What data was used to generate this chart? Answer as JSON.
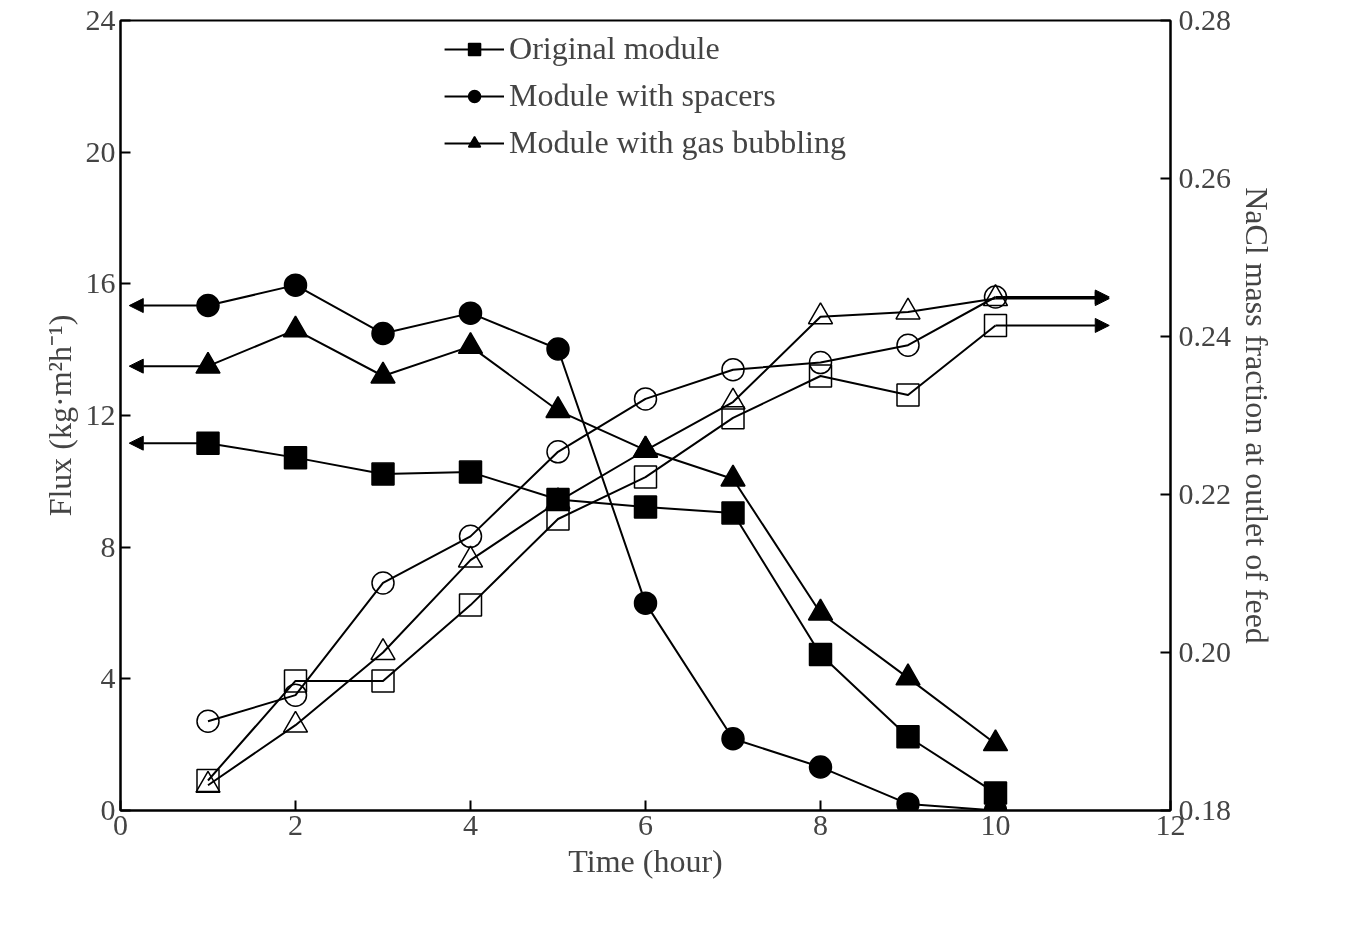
{
  "chart_data": {
    "type": "line",
    "xlabel": "Time (hour)",
    "ylabel": "Flux (kg·m²h⁻¹)",
    "y2label": "NaCl mass fraction at outlet of feed",
    "x": [
      1,
      2,
      3,
      4,
      5,
      6,
      7,
      8,
      9,
      10
    ],
    "xlim": [
      0,
      12
    ],
    "xticks": [
      0,
      2,
      4,
      6,
      8,
      10,
      12
    ],
    "ylim": [
      0,
      24
    ],
    "yticks": [
      0,
      4,
      8,
      12,
      16,
      20,
      24
    ],
    "y2lim": [
      0.18,
      0.28
    ],
    "y2ticks": [
      {
        "value": 0.18,
        "label": "0.18"
      },
      {
        "value": 0.2,
        "label": "0.20"
      },
      {
        "value": 0.22,
        "label": "0.22"
      },
      {
        "value": 0.24,
        "label": "0.24"
      },
      {
        "value": 0.26,
        "label": "0.26"
      },
      {
        "value": 0.28,
        "label": "0.28"
      }
    ],
    "grid": false,
    "legend": "top",
    "line_style": "solid",
    "series": [
      {
        "name": "Original module",
        "color": "#000000",
        "marker": "square",
        "values": [
          11.16,
          10.72,
          10.22,
          10.28,
          9.45,
          9.22,
          9.04,
          4.74,
          2.24,
          0.53
        ]
      },
      {
        "name": "Module with spacers",
        "color": "#000000",
        "marker": "circle",
        "values": [
          15.34,
          15.96,
          14.49,
          15.11,
          14.02,
          6.3,
          2.18,
          1.32,
          0.2,
          0
        ]
      },
      {
        "name": "Module with gas bubbling",
        "color": "#000000",
        "marker": "triangle",
        "values": [
          13.5,
          14.6,
          13.2,
          14.1,
          12.15,
          10.95,
          10.07,
          6.0,
          4.03,
          2.03
        ]
      },
      {
        "color": "#000000",
        "marker": "square",
        "axis": "y2",
        "values": [
          0.1838,
          0.1964,
          0.1964,
          0.206,
          0.2169,
          0.2222,
          0.2297,
          0.235,
          0.2326,
          0.2414
        ]
      },
      {
        "color": "#000000",
        "marker": "circle",
        "axis": "y2",
        "values": [
          0.1913,
          0.1946,
          0.2088,
          0.2147,
          0.2254,
          0.2321,
          0.2358,
          0.2367,
          0.2389,
          0.245
        ]
      },
      {
        "color": "#000000",
        "marker": "triangle",
        "axis": "y2",
        "values": [
          0.1832,
          0.1908,
          0.2,
          0.2117,
          0.2191,
          0.2256,
          0.2317,
          0.2425,
          0.2431,
          0.2448
        ]
      }
    ]
  }
}
